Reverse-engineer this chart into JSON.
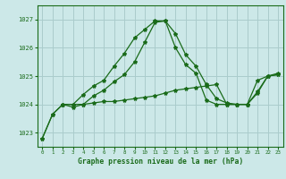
{
  "title": "Graphe pression niveau de la mer (hPa)",
  "xlim": [
    -0.5,
    23.5
  ],
  "ylim": [
    1022.5,
    1027.5
  ],
  "yticks": [
    1023,
    1024,
    1025,
    1026,
    1027
  ],
  "xticks": [
    0,
    1,
    2,
    3,
    4,
    5,
    6,
    7,
    8,
    9,
    10,
    11,
    12,
    13,
    14,
    15,
    16,
    17,
    18,
    19,
    20,
    21,
    22,
    23
  ],
  "background_color": "#cce8e8",
  "grid_color": "#aacccc",
  "line_color": "#1a6b1a",
  "series": [
    {
      "x": [
        0,
        1,
        2,
        3,
        4,
        5,
        6,
        7,
        8,
        9,
        10,
        11,
        12,
        13,
        14,
        15,
        16,
        17,
        18,
        19,
        20,
        21,
        22,
        23
      ],
      "y": [
        1022.8,
        1023.65,
        1024.0,
        1024.0,
        1024.35,
        1024.65,
        1024.85,
        1025.35,
        1025.8,
        1026.35,
        1026.65,
        1026.95,
        1026.95,
        1026.0,
        1025.4,
        1025.1,
        1024.15,
        1024.0,
        1024.0,
        1024.0,
        1024.0,
        1024.45,
        1025.0,
        1025.05
      ]
    },
    {
      "x": [
        0,
        1,
        2,
        3,
        4,
        5,
        6,
        7,
        8,
        9,
        10,
        11,
        12,
        13,
        14,
        15,
        16,
        17,
        18,
        19,
        20,
        21,
        22,
        23
      ],
      "y": [
        1022.8,
        1023.65,
        1024.0,
        1023.9,
        1024.0,
        1024.3,
        1024.5,
        1024.8,
        1025.05,
        1025.5,
        1026.2,
        1026.9,
        1026.95,
        1026.5,
        1025.75,
        1025.35,
        1024.7,
        1024.2,
        1024.05,
        1024.0,
        1024.0,
        1024.85,
        1025.0,
        1025.1
      ]
    },
    {
      "x": [
        2,
        3,
        4,
        5,
        6,
        7,
        8,
        9,
        10,
        11,
        12,
        13,
        14,
        15,
        16,
        17,
        18,
        19,
        20,
        21,
        22,
        23
      ],
      "y": [
        1024.0,
        1024.0,
        1024.0,
        1024.05,
        1024.1,
        1024.1,
        1024.15,
        1024.2,
        1024.25,
        1024.3,
        1024.4,
        1024.5,
        1024.55,
        1024.6,
        1024.65,
        1024.7,
        1024.0,
        1024.0,
        1024.0,
        1024.4,
        1025.0,
        1025.05
      ]
    }
  ]
}
